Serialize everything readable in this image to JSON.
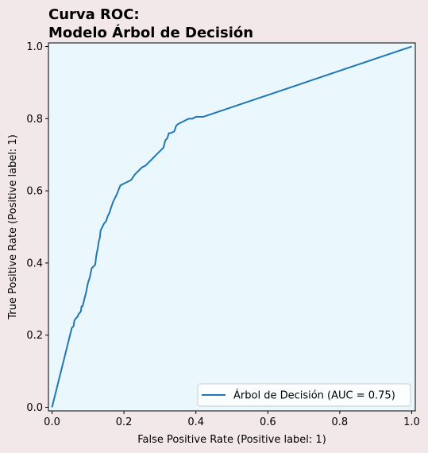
{
  "chart_data": {
    "type": "line",
    "title_lines": [
      "Curva ROC:",
      "Modelo Árbol de Decisión"
    ],
    "xlabel": "False Positive Rate (Positive label: 1)",
    "ylabel": "True Positive Rate (Positive label: 1)",
    "xlim": [
      -0.01,
      1.01
    ],
    "ylim": [
      -0.01,
      1.01
    ],
    "x_ticks": [
      0.0,
      0.2,
      0.4,
      0.6,
      0.8,
      1.0
    ],
    "y_ticks": [
      0.0,
      0.2,
      0.4,
      0.6,
      0.8,
      1.0
    ],
    "x_tick_labels": [
      "0.0",
      "0.2",
      "0.4",
      "0.6",
      "0.8",
      "1.0"
    ],
    "y_tick_labels": [
      "0.0",
      "0.2",
      "0.4",
      "0.6",
      "0.8",
      "1.0"
    ],
    "grid": false,
    "legend_position": "lower-right",
    "plot_background": "#eaf7fc",
    "figure_background": "#f3e8e9",
    "series": [
      {
        "name": "Árbol de Decisión (AUC = 0.75)",
        "color": "#1f77b4",
        "x": [
          0.0,
          0.055,
          0.06,
          0.062,
          0.065,
          0.07,
          0.075,
          0.08,
          0.082,
          0.085,
          0.09,
          0.095,
          0.1,
          0.105,
          0.11,
          0.115,
          0.12,
          0.123,
          0.127,
          0.13,
          0.133,
          0.135,
          0.14,
          0.145,
          0.15,
          0.155,
          0.16,
          0.163,
          0.17,
          0.18,
          0.19,
          0.2,
          0.21,
          0.22,
          0.23,
          0.24,
          0.25,
          0.26,
          0.27,
          0.275,
          0.28,
          0.29,
          0.3,
          0.31,
          0.315,
          0.32,
          0.325,
          0.33,
          0.34,
          0.345,
          0.35,
          0.36,
          0.37,
          0.38,
          0.39,
          0.4,
          0.41,
          0.42,
          1.0
        ],
        "y": [
          0.0,
          0.22,
          0.225,
          0.24,
          0.245,
          0.25,
          0.26,
          0.265,
          0.28,
          0.28,
          0.3,
          0.32,
          0.345,
          0.36,
          0.385,
          0.39,
          0.395,
          0.42,
          0.44,
          0.46,
          0.47,
          0.49,
          0.5,
          0.51,
          0.515,
          0.53,
          0.54,
          0.55,
          0.57,
          0.59,
          0.615,
          0.62,
          0.625,
          0.63,
          0.645,
          0.655,
          0.665,
          0.67,
          0.68,
          0.685,
          0.69,
          0.7,
          0.71,
          0.72,
          0.74,
          0.745,
          0.76,
          0.76,
          0.765,
          0.78,
          0.785,
          0.79,
          0.795,
          0.8,
          0.8,
          0.805,
          0.805,
          0.805,
          1.0
        ]
      }
    ]
  }
}
